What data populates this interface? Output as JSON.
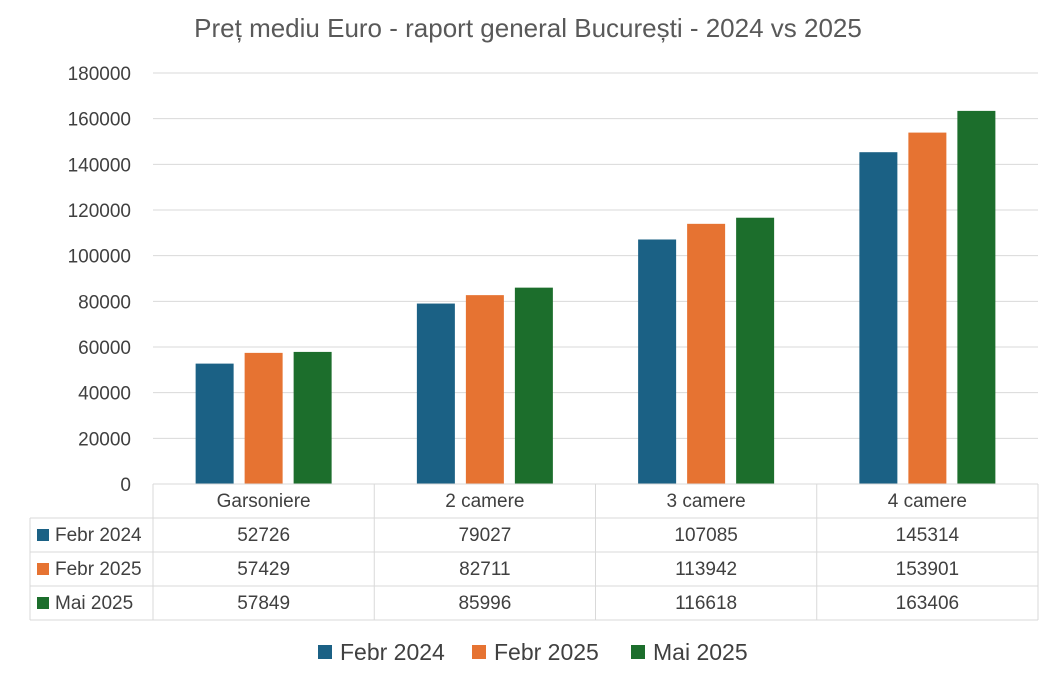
{
  "chart_data": {
    "type": "bar",
    "title": "Preț mediu Euro - raport general București - 2024 vs 2025",
    "categories": [
      "Garsoniere",
      "2 camere",
      "3 camere",
      "4 camere"
    ],
    "series": [
      {
        "name": "Febr 2024",
        "color": "#1b6185",
        "values": [
          52726,
          79027,
          107085,
          145314
        ]
      },
      {
        "name": "Febr 2025",
        "color": "#e67332",
        "values": [
          57429,
          82711,
          113942,
          153901
        ]
      },
      {
        "name": "Mai 2025",
        "color": "#1c6e2c",
        "values": [
          57849,
          85996,
          116618,
          163406
        ]
      }
    ],
    "yticks": [
      0,
      20000,
      40000,
      60000,
      80000,
      100000,
      120000,
      140000,
      160000,
      180000
    ],
    "ylim": [
      0,
      180000
    ],
    "grid": true,
    "data_table": true,
    "legend": "bottom"
  }
}
